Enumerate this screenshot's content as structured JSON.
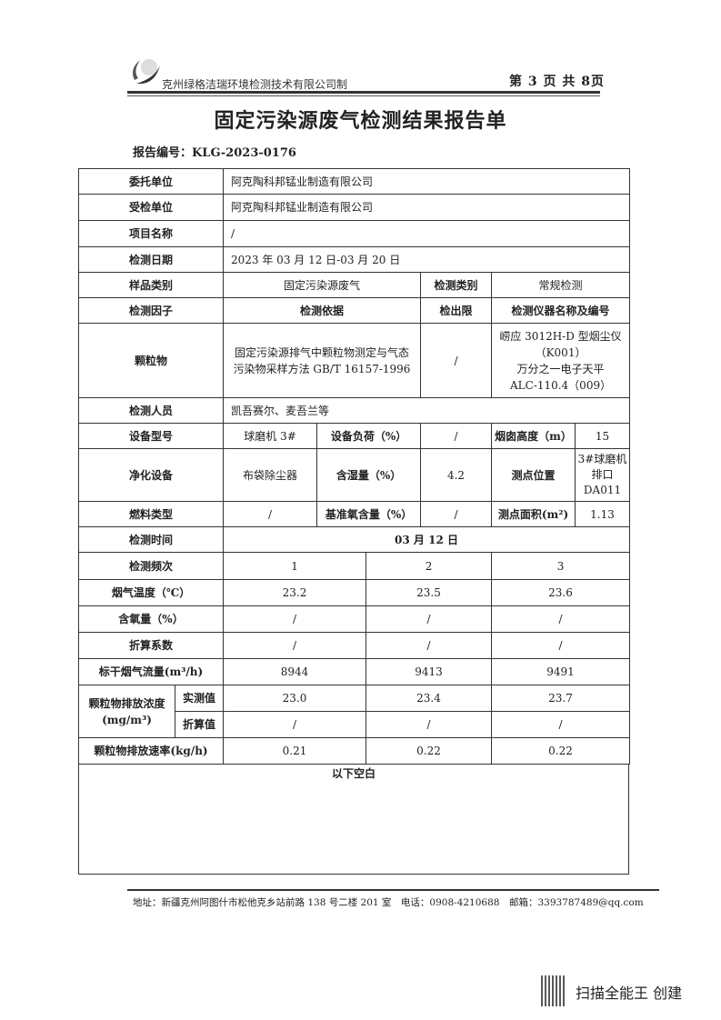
{
  "header": {
    "company": "克州绿格洁瑞环境检测技术有限公司制",
    "page": "第 3 页 共 8页",
    "title": "固定污染源废气检测结果报告单",
    "report_no": "报告编号：KLG-2023-0176"
  },
  "info": {
    "client_label": "委托单位",
    "client": "阿克陶科邦锰业制造有限公司",
    "inspected_label": "受检单位",
    "inspected": "阿克陶科邦锰业制造有限公司",
    "project_label": "项目名称",
    "project": "/",
    "date_label": "检测日期",
    "date": "2023 年 03 月 12 日-03 月 20 日",
    "sample_type_label": "样品类别",
    "sample_type": "固定污染源废气",
    "test_type_label": "检测类别",
    "test_type": "常规检测",
    "factor_h": "检测因子",
    "basis_h": "检测依据",
    "limit_h": "检出限",
    "instrument_h": "检测仪器名称及编号",
    "factor": "颗粒物",
    "basis": "固定污染源排气中颗粒物测定与气态污染物采样方法 GB/T 16157-1996",
    "limit": "/",
    "instrument": [
      "崂应 3012H-D 型烟尘仪",
      "（K001）",
      "万分之一电子天平",
      "ALC-110.4（009）"
    ],
    "staff_label": "检测人员",
    "staff": "凯吾赛尔、麦吾兰等",
    "equip_label": "设备型号",
    "equip": "球磨机 3#",
    "load_label": "设备负荷（%）",
    "load": "/",
    "stack_h_label": "烟囱高度（m）",
    "stack_h": "15",
    "purify_label": "净化设备",
    "purify": "布袋除尘器",
    "moisture_label": "含湿量（%）",
    "moisture": "4.2",
    "point_label": "测点位置",
    "point": [
      "3#球磨机",
      "排口",
      "DA011"
    ],
    "fuel_label": "燃料类型",
    "fuel": "/",
    "o2_ref_label": "基准氧含量（%）",
    "o2_ref": "/",
    "area_label": "测点面积(m²)",
    "area": "1.13",
    "time_label": "检测时间",
    "time": "03 月 12 日"
  },
  "results": {
    "freq_label": "检测频次",
    "freq": [
      "1",
      "2",
      "3"
    ],
    "rows": [
      {
        "label": "烟气温度（℃）",
        "values": [
          "23.2",
          "23.5",
          "23.6"
        ]
      },
      {
        "label": "含氧量（%）",
        "values": [
          "/",
          "/",
          "/"
        ]
      },
      {
        "label": "折算系数",
        "values": [
          "/",
          "/",
          "/"
        ]
      },
      {
        "label": "标干烟气流量(m³/h)",
        "values": [
          "8944",
          "9413",
          "9491"
        ]
      }
    ],
    "conc_label": "颗粒物排放浓度",
    "conc_unit": "(mg/m³)",
    "measured_label": "实测值",
    "measured": [
      "23.0",
      "23.4",
      "23.7"
    ],
    "converted_label": "折算值",
    "converted": [
      "/",
      "/",
      "/"
    ],
    "rate_label": "颗粒物排放速率(kg/h)",
    "rate": [
      "0.21",
      "0.22",
      "0.22"
    ],
    "blank": "以下空白"
  },
  "footer": {
    "address": "地址：新疆克州阿图什市松他克乡站前路 138 号二楼 201 室　电话：0908-4210688　邮箱：3393787489@qq.com",
    "watermark": "扫描全能王 创建"
  }
}
